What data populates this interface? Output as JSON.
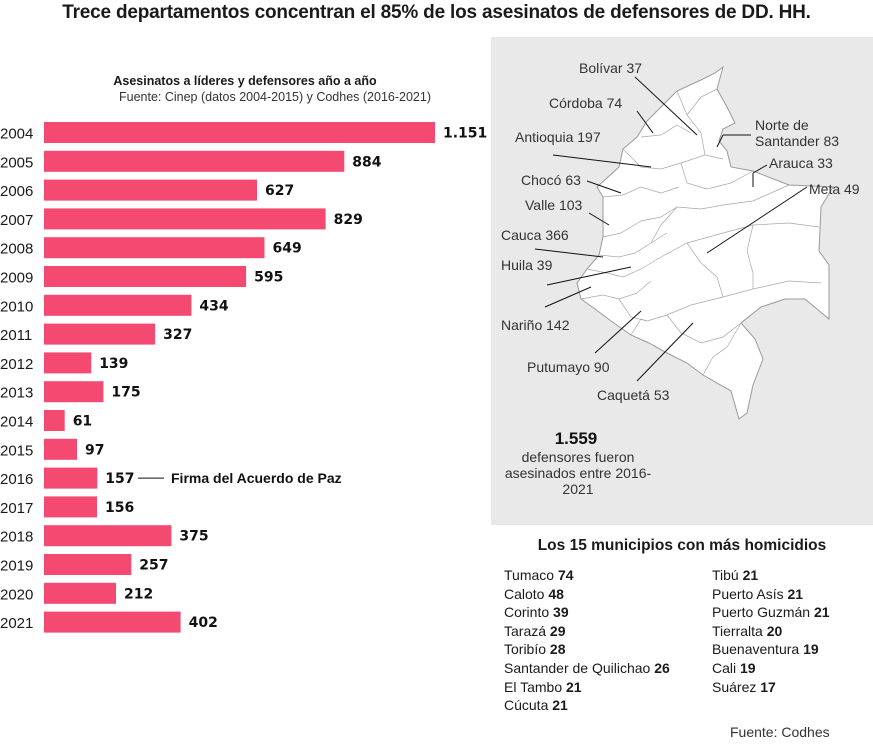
{
  "title": "Trece departamentos concentran el 85% de los asesinatos de defensores de DD. HH.",
  "bar_color": "#f44a72",
  "chart_data": {
    "type": "bar",
    "orientation": "horizontal",
    "title": "Asesinatos a líderes y defensores año a año",
    "subtitle": "Fuente: Cinep (datos 2004-2015) y Codhes (2016-2021)",
    "categories": [
      "2004",
      "2005",
      "2006",
      "2007",
      "2008",
      "2009",
      "2010",
      "2011",
      "2012",
      "2013",
      "2014",
      "2015",
      "2016",
      "2017",
      "2018",
      "2019",
      "2020",
      "2021"
    ],
    "values": [
      1151,
      884,
      627,
      829,
      649,
      595,
      434,
      327,
      139,
      175,
      61,
      97,
      157,
      156,
      375,
      257,
      212,
      402
    ],
    "value_labels": [
      "1.151",
      "884",
      "627",
      "829",
      "649",
      "595",
      "434",
      "327",
      "139",
      "175",
      "61",
      "97",
      "157",
      "156",
      "375",
      "257",
      "212",
      "402"
    ],
    "annotation": {
      "category": "2016",
      "text": "Firma del Acuerdo de Paz"
    },
    "xlim": [
      0,
      1151
    ]
  },
  "map": {
    "labels": [
      {
        "id": "bolivar",
        "text": "Bolívar 37"
      },
      {
        "id": "cordoba",
        "text": "Córdoba 74"
      },
      {
        "id": "norte-santander",
        "text": "Norte de\nSantander 83"
      },
      {
        "id": "antioquia",
        "text": "Antioquia 197"
      },
      {
        "id": "arauca",
        "text": "Arauca 33"
      },
      {
        "id": "choco",
        "text": "Chocó 63"
      },
      {
        "id": "meta",
        "text": "Meta 49"
      },
      {
        "id": "valle",
        "text": "Valle 103"
      },
      {
        "id": "cauca",
        "text": "Cauca 366"
      },
      {
        "id": "huila",
        "text": "Huila 39"
      },
      {
        "id": "narino",
        "text": "Nariño 142"
      },
      {
        "id": "putumayo",
        "text": "Putumayo 90"
      },
      {
        "id": "caqueta",
        "text": "Caquetá 53"
      }
    ],
    "total_number": "1.559",
    "total_text": "defensores fueron asesinados entre 2016-2021"
  },
  "municipios": {
    "title": "Los 15 municipios con más homicidios",
    "left": [
      {
        "name": "Tumaco",
        "value": "74"
      },
      {
        "name": "Caloto",
        "value": "48"
      },
      {
        "name": "Corinto",
        "value": "39"
      },
      {
        "name": "Tarazá",
        "value": "29"
      },
      {
        "name": "Toribío",
        "value": "28"
      },
      {
        "name": "Santander de Quilichao",
        "value": "26"
      },
      {
        "name": "El Tambo",
        "value": "21"
      },
      {
        "name": "Cúcuta",
        "value": "21"
      }
    ],
    "right": [
      {
        "name": "Tibú",
        "value": "21"
      },
      {
        "name": "Puerto Asís",
        "value": "21"
      },
      {
        "name": "Puerto Guzmán",
        "value": "21"
      },
      {
        "name": "Tierralta",
        "value": "20"
      },
      {
        "name": "Buenaventura",
        "value": "19"
      },
      {
        "name": "Cali",
        "value": "19"
      },
      {
        "name": "Suárez",
        "value": "17"
      }
    ]
  },
  "source": "Fuente: Codhes"
}
